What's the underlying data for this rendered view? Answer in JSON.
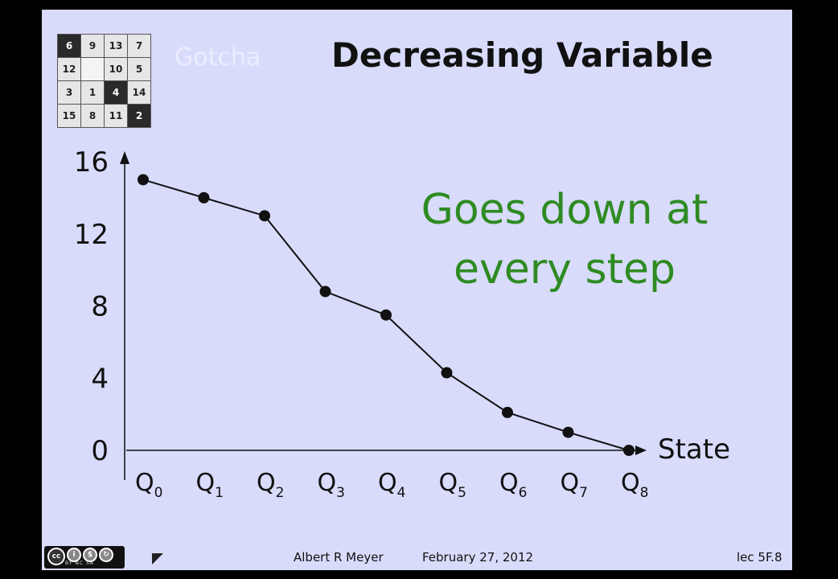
{
  "slide": {
    "title": "Decreasing Variable",
    "faded_heading": "Gotcha",
    "callout_line1": "Goes down at",
    "callout_line2": "every step",
    "footer_author": "Albert R Meyer",
    "footer_date": "February 27, 2012",
    "footer_lecture": "lec 5F.8",
    "license_text": "BY NC SA",
    "license_icons": [
      "cc-icon",
      "attribution-icon",
      "noncommercial-icon",
      "sharealike-icon"
    ]
  },
  "puzzle": {
    "tiles": [
      {
        "label": "6",
        "dark": true
      },
      {
        "label": "9",
        "dark": false
      },
      {
        "label": "13",
        "dark": false
      },
      {
        "label": "7",
        "dark": false
      },
      {
        "label": "12",
        "dark": false
      },
      {
        "label": "",
        "dark": false
      },
      {
        "label": "10",
        "dark": false
      },
      {
        "label": "5",
        "dark": false
      },
      {
        "label": "3",
        "dark": false
      },
      {
        "label": "1",
        "dark": false
      },
      {
        "label": "4",
        "dark": true
      },
      {
        "label": "14",
        "dark": false
      },
      {
        "label": "15",
        "dark": false
      },
      {
        "label": "8",
        "dark": false
      },
      {
        "label": "11",
        "dark": false
      },
      {
        "label": "2",
        "dark": true
      }
    ]
  },
  "chart_data": {
    "type": "line",
    "categories": [
      "Q0",
      "Q1",
      "Q2",
      "Q3",
      "Q4",
      "Q5",
      "Q6",
      "Q7",
      "Q8"
    ],
    "category_base": "Q",
    "category_subscripts": [
      "0",
      "1",
      "2",
      "3",
      "4",
      "5",
      "6",
      "7",
      "8"
    ],
    "values": [
      15,
      14,
      13,
      8.8,
      7.5,
      4.3,
      2.1,
      1.0,
      0
    ],
    "ylim": [
      0,
      16
    ],
    "yticks": [
      0,
      4,
      8,
      12,
      16
    ],
    "xlabel": "State",
    "ylabel": "",
    "grid": false,
    "legend": "none",
    "line_color": "#111111",
    "marker_color": "#111111"
  },
  "colors": {
    "background": "#d8dbfa",
    "callout": "#2e8b22",
    "frame": "#000000"
  }
}
